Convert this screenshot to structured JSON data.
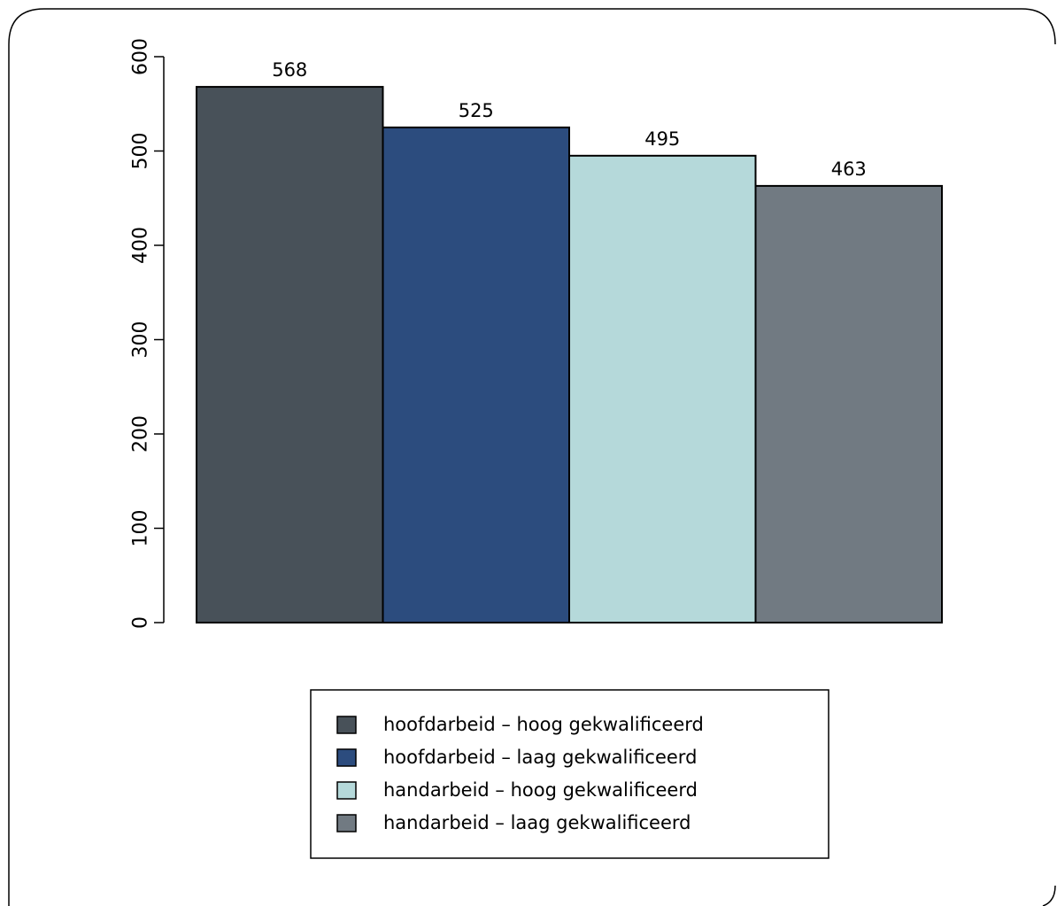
{
  "chart_data": {
    "type": "bar",
    "categories": [
      "hoofdarbeid – hoog gekwalificeerd",
      "hoofdarbeid – laag gekwalificeerd",
      "handarbeid – hoog gekwalificeerd",
      "handarbeid – laag gekwalificeerd"
    ],
    "values": [
      568,
      525,
      495,
      463
    ],
    "data_labels": [
      "568",
      "525",
      "495",
      "463"
    ],
    "colors": [
      "#485159",
      "#2c4c7e",
      "#b5d9da",
      "#717a82"
    ],
    "ylim": [
      0,
      600
    ],
    "yticks": [
      0,
      100,
      200,
      300,
      400,
      500,
      600
    ],
    "ytick_labels": [
      "0",
      "100",
      "200",
      "300",
      "400",
      "500",
      "600"
    ],
    "title": "",
    "xlabel": "",
    "ylabel": "",
    "grid": false,
    "legend": {
      "placement": "bottom-center",
      "entries": [
        "hoofdarbeid – hoog gekwalificeerd",
        "hoofdarbeid – laag gekwalificeerd",
        "handarbeid – hoog gekwalificeerd",
        "handarbeid – laag gekwalificeerd"
      ]
    }
  }
}
